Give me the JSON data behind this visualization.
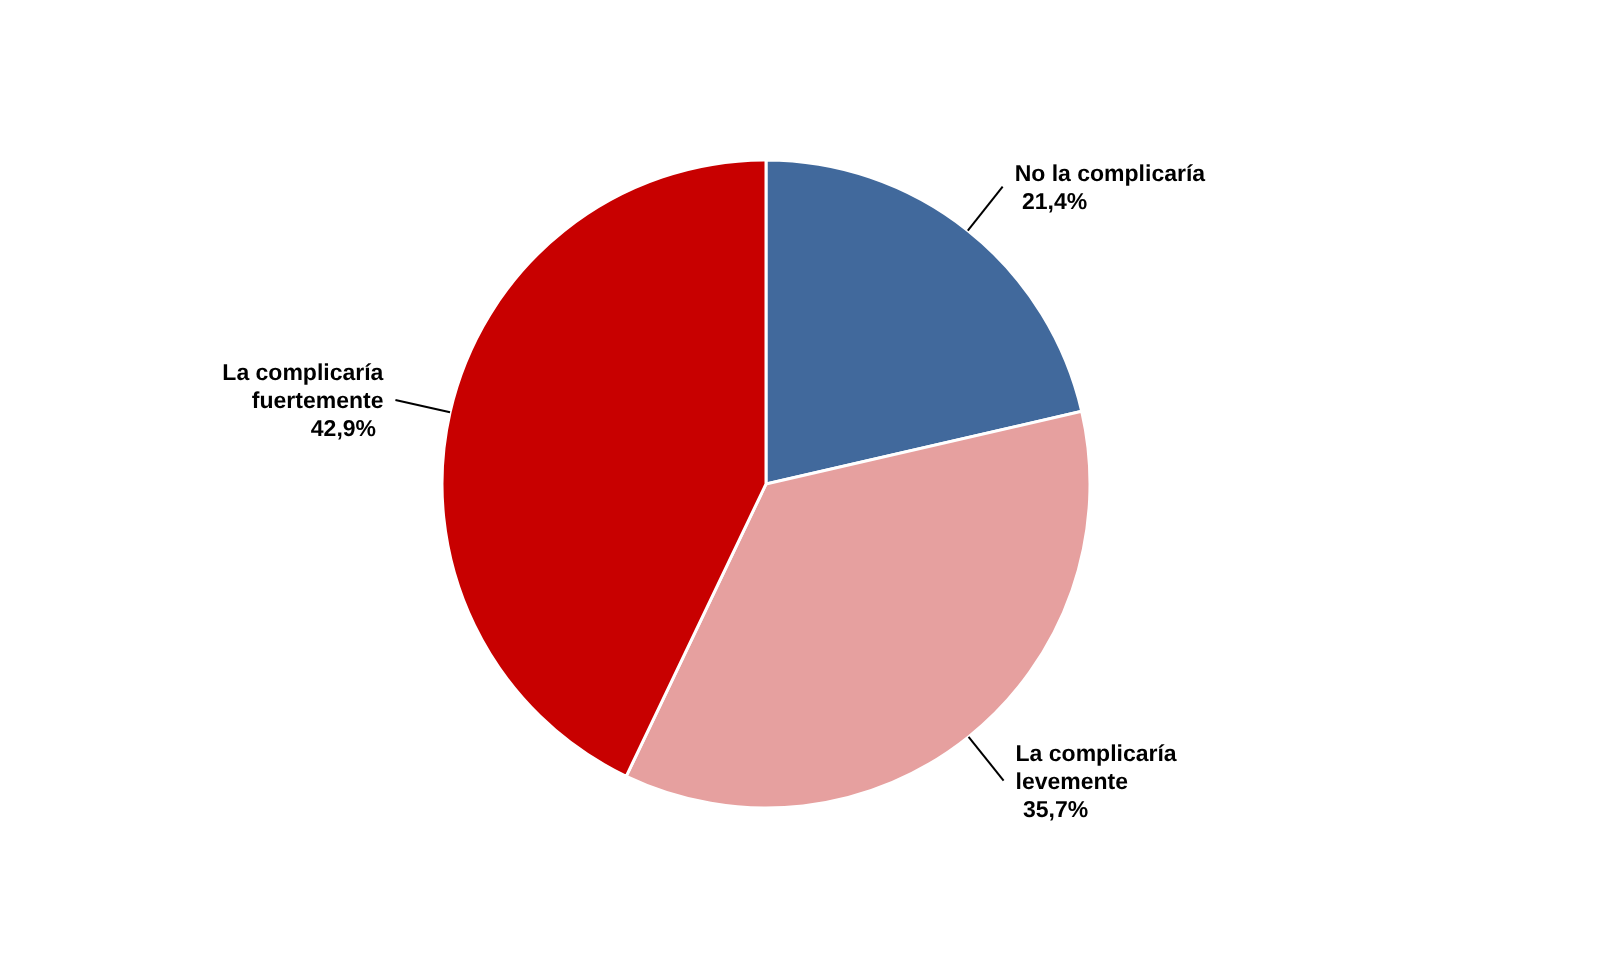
{
  "chart_data": {
    "type": "pie",
    "categories": [
      "No la complicaría",
      "La complicaría levemente",
      "La complicaría fuertemente"
    ],
    "values": [
      21.4,
      35.7,
      42.9
    ],
    "value_labels": [
      "21,4%",
      "35,7%",
      "42,9%"
    ],
    "colors": [
      "#41699c",
      "#e6a09f",
      "#c80000"
    ]
  }
}
